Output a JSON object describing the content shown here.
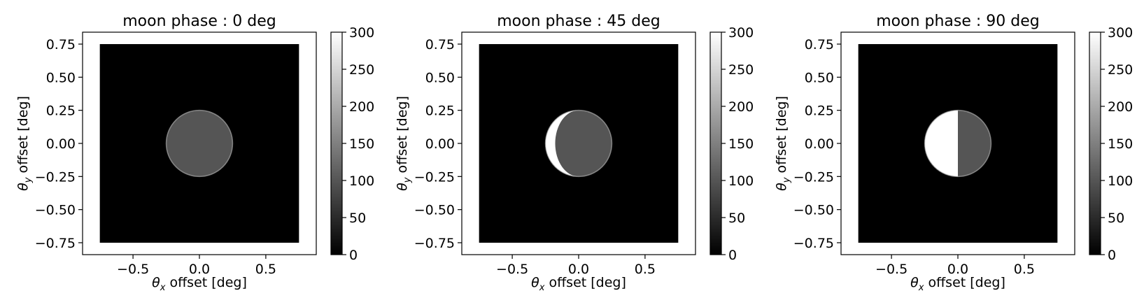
{
  "figure": {
    "background": "#ffffff",
    "image_background": "#000000",
    "lit_value": 300,
    "dark_side_value": 100,
    "moon_radius_deg": 0.25
  },
  "chart_data": [
    {
      "type": "heatmap",
      "title": "moon phase : 0 deg",
      "xlabel_symbol": "θ",
      "xlabel_sub": "x",
      "xlabel_rest": " offset [deg]",
      "ylabel_symbol": "θ",
      "ylabel_sub": "y",
      "ylabel_rest": " offset [deg]",
      "xlim": [
        -0.88,
        0.88
      ],
      "ylim": [
        -0.84,
        0.84
      ],
      "image_extent": [
        -0.75,
        0.75,
        -0.75,
        0.75
      ],
      "x_ticks": [
        -0.5,
        0.0,
        0.5
      ],
      "x_tick_labels": [
        "−0.5",
        "0.0",
        "0.5"
      ],
      "y_ticks": [
        0.75,
        0.5,
        0.25,
        0.0,
        -0.25,
        -0.5,
        -0.75
      ],
      "y_tick_labels": [
        "0.75",
        "0.50",
        "0.25",
        "0.00",
        "−0.25",
        "−0.50",
        "−0.75"
      ],
      "moon_phase_deg": 0,
      "colorbar": {
        "range": [
          0,
          300
        ],
        "colormap": "gray",
        "ticks": [
          300,
          250,
          200,
          150,
          100,
          50,
          0
        ],
        "tick_labels": [
          "300",
          "250",
          "200",
          "150",
          "100",
          "50",
          "0"
        ]
      }
    },
    {
      "type": "heatmap",
      "title": "moon phase : 45 deg",
      "xlabel_symbol": "θ",
      "xlabel_sub": "x",
      "xlabel_rest": " offset [deg]",
      "ylabel_symbol": "θ",
      "ylabel_sub": "y",
      "ylabel_rest": " offset [deg]",
      "xlim": [
        -0.88,
        0.88
      ],
      "ylim": [
        -0.84,
        0.84
      ],
      "image_extent": [
        -0.75,
        0.75,
        -0.75,
        0.75
      ],
      "x_ticks": [
        -0.5,
        0.0,
        0.5
      ],
      "x_tick_labels": [
        "−0.5",
        "0.0",
        "0.5"
      ],
      "y_ticks": [
        0.75,
        0.5,
        0.25,
        0.0,
        -0.25,
        -0.5,
        -0.75
      ],
      "y_tick_labels": [
        "0.75",
        "0.50",
        "0.25",
        "0.00",
        "−0.25",
        "−0.50",
        "−0.75"
      ],
      "moon_phase_deg": 45,
      "colorbar": {
        "range": [
          0,
          300
        ],
        "colormap": "gray",
        "ticks": [
          300,
          250,
          200,
          150,
          100,
          50,
          0
        ],
        "tick_labels": [
          "300",
          "250",
          "200",
          "150",
          "100",
          "50",
          "0"
        ]
      }
    },
    {
      "type": "heatmap",
      "title": "moon phase : 90 deg",
      "xlabel_symbol": "θ",
      "xlabel_sub": "x",
      "xlabel_rest": " offset [deg]",
      "ylabel_symbol": "θ",
      "ylabel_sub": "y",
      "ylabel_rest": " offset [deg]",
      "xlim": [
        -0.88,
        0.88
      ],
      "ylim": [
        -0.84,
        0.84
      ],
      "image_extent": [
        -0.75,
        0.75,
        -0.75,
        0.75
      ],
      "x_ticks": [
        -0.5,
        0.0,
        0.5
      ],
      "x_tick_labels": [
        "−0.5",
        "0.0",
        "0.5"
      ],
      "y_ticks": [
        0.75,
        0.5,
        0.25,
        0.0,
        -0.25,
        -0.5,
        -0.75
      ],
      "y_tick_labels": [
        "0.75",
        "0.50",
        "0.25",
        "0.00",
        "−0.25",
        "−0.50",
        "−0.75"
      ],
      "moon_phase_deg": 90,
      "colorbar": {
        "range": [
          0,
          300
        ],
        "colormap": "gray",
        "ticks": [
          300,
          250,
          200,
          150,
          100,
          50,
          0
        ],
        "tick_labels": [
          "300",
          "250",
          "200",
          "150",
          "100",
          "50",
          "0"
        ]
      }
    }
  ]
}
